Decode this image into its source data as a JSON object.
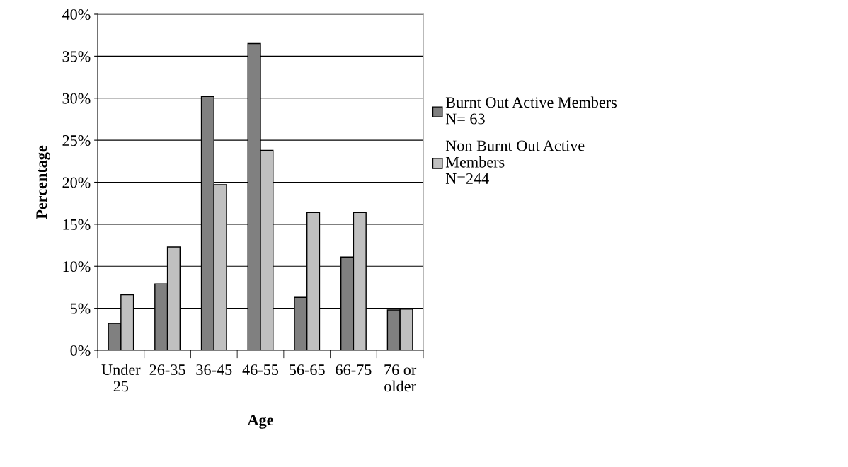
{
  "chart_data": {
    "type": "bar",
    "xlabel": "Age",
    "ylabel": "Percentage",
    "categories": [
      "Under\n25",
      "26-35",
      "36-45",
      "46-55",
      "56-65",
      "66-75",
      "76 or\nolder"
    ],
    "series": [
      {
        "name": "Burnt Out Active Members\nN= 63",
        "color": "#808080",
        "values": [
          3.2,
          7.9,
          30.2,
          36.5,
          6.3,
          11.1,
          4.8
        ]
      },
      {
        "name": "Non Burnt Out Active\nMembers\nN=244",
        "color": "#c0c0c0",
        "values": [
          6.6,
          12.3,
          19.7,
          23.8,
          16.4,
          16.4,
          4.9
        ]
      }
    ],
    "ylim": [
      0,
      40
    ],
    "yticks": [
      {
        "value": 0,
        "label": "0%"
      },
      {
        "value": 5,
        "label": "5%"
      },
      {
        "value": 10,
        "label": "10%"
      },
      {
        "value": 15,
        "label": "15%"
      },
      {
        "value": 20,
        "label": "20%"
      },
      {
        "value": 25,
        "label": "25%"
      },
      {
        "value": 30,
        "label": "30%"
      },
      {
        "value": 35,
        "label": "35%"
      },
      {
        "value": 40,
        "label": "40%"
      }
    ],
    "grid": "y",
    "legend": "right"
  }
}
